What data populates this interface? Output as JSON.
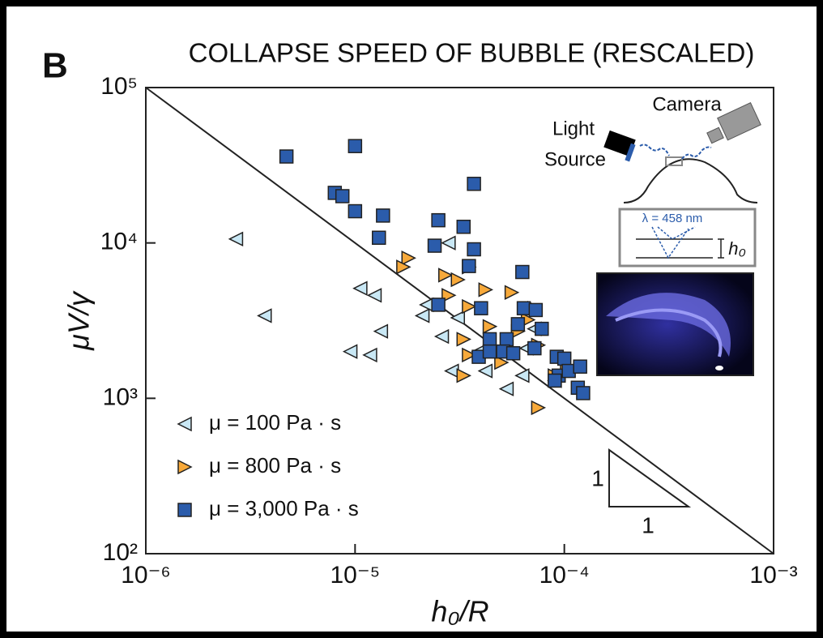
{
  "panel_label": "B",
  "chart_data": {
    "type": "scatter",
    "title": "COLLAPSE SPEED OF BUBBLE (RESCALED)",
    "x_label": "h₀/R",
    "y_label": "μV/γ",
    "xscale": "log",
    "yscale": "log",
    "xlim": [
      1e-06,
      0.001
    ],
    "ylim": [
      100,
      100000
    ],
    "xticks": [
      {
        "value": 1e-06,
        "label": "10⁻⁶"
      },
      {
        "value": 1e-05,
        "label": "10⁻⁵"
      },
      {
        "value": 0.0001,
        "label": "10⁻⁴"
      },
      {
        "value": 0.001,
        "label": "10⁻³"
      }
    ],
    "yticks": [
      {
        "value": 100,
        "label": "10²"
      },
      {
        "value": 1000,
        "label": "10³"
      },
      {
        "value": 10000,
        "label": "10⁴"
      },
      {
        "value": 100000,
        "label": "10⁵"
      }
    ],
    "legend": "lower left",
    "series": [
      {
        "name": "μ = 100 Pa · s",
        "marker": "triangle-left",
        "color": "#c9e8f5",
        "x": [
          2.7e-06,
          3.7e-06,
          1.06e-05,
          1.24e-05,
          9.5e-06,
          1.18e-05,
          1.33e-05,
          2.8e-05,
          2.2e-05,
          2.1e-05,
          3.1e-05,
          2.6e-05,
          2.9e-05,
          4.2e-05,
          3.9e-05,
          5.3e-05,
          6.3e-05,
          7.2e-05,
          9e-05,
          6.6e-05
        ],
        "y": [
          10600,
          3400,
          5100,
          4600,
          2000,
          1900,
          2700,
          10000,
          4000,
          3400,
          3300,
          2500,
          1500,
          1500,
          2000,
          1150,
          1400,
          2800,
          1300,
          2100
        ]
      },
      {
        "name": "μ = 800 Pa · s",
        "marker": "triangle-right",
        "color": "#f7a93a",
        "x": [
          1.8e-05,
          1.7e-05,
          2.7e-05,
          3.1e-05,
          3.5e-05,
          2.8e-05,
          3.5e-05,
          4.2e-05,
          4.4e-05,
          3.3e-05,
          3.5e-05,
          3.3e-05,
          5e-05,
          5.6e-05,
          6e-05,
          6.7e-05,
          7.5e-05,
          7.2e-05,
          9e-05,
          7.5e-05,
          0.000103
        ],
        "y": [
          8000,
          7000,
          6200,
          5800,
          7000,
          4600,
          3900,
          5000,
          2900,
          2400,
          1900,
          1400,
          1700,
          4800,
          2700,
          3200,
          2200,
          3800,
          1400,
          870,
          1600
        ]
      },
      {
        "name": "μ = 3,000 Pa · s",
        "marker": "square",
        "color": "#2b5cab",
        "x": [
          4.7e-06,
          1e-05,
          8e-06,
          8.7e-06,
          1e-05,
          1.36e-05,
          1.3e-05,
          2.5e-05,
          2.4e-05,
          3.3e-05,
          3.7e-05,
          3.7e-05,
          3.5e-05,
          2.5e-05,
          4e-05,
          3.9e-05,
          6.3e-05,
          6.4e-05,
          7.3e-05,
          6e-05,
          5.3e-05,
          5.1e-05,
          5.7e-05,
          7.8e-05,
          7.2e-05,
          9.2e-05,
          0.0001,
          9.4e-05,
          0.000105,
          9e-05,
          0.000119,
          0.000116,
          0.000123,
          4.4e-05,
          4.4e-05
        ],
        "y": [
          36000,
          42000,
          21000,
          20000,
          16000,
          15000,
          10800,
          14000,
          9600,
          12700,
          24000,
          9100,
          7100,
          4000,
          3800,
          1850,
          6500,
          3800,
          3700,
          3000,
          2400,
          2000,
          1950,
          2800,
          2100,
          1850,
          1800,
          1400,
          1500,
          1300,
          1600,
          1170,
          1080,
          2400,
          2000
        ]
      }
    ],
    "line": {
      "x": [
        1e-06,
        0.001
      ],
      "y": [
        100000,
        100
      ]
    },
    "slope_labels": [
      "1",
      "1"
    ]
  },
  "inset": {
    "labels": [
      "Camera",
      "Light",
      "Source",
      "λ = 458 nm",
      "h₀"
    ]
  }
}
